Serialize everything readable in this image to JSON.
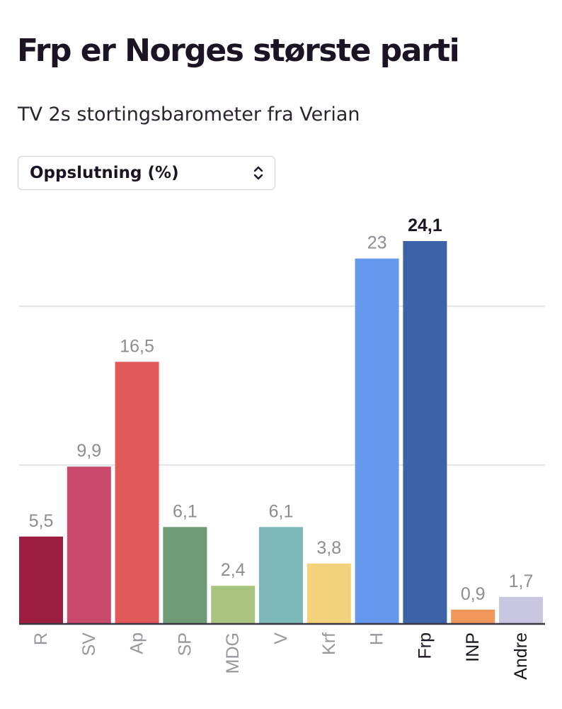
{
  "title": "Frp er Norges største parti",
  "subtitle": "TV 2s stortingsbarometer fra Verian",
  "dropdown": {
    "selected": "Oppslutning (%)",
    "icon": "chevron-up-down-icon"
  },
  "chart_data": {
    "type": "bar",
    "categories": [
      "R",
      "SV",
      "Ap",
      "SP",
      "MDG",
      "V",
      "Krf",
      "H",
      "Frp",
      "INP",
      "Andre"
    ],
    "values": [
      5.5,
      9.9,
      16.5,
      6.1,
      2.4,
      6.1,
      3.8,
      23,
      24.1,
      0.9,
      1.7
    ],
    "value_labels": [
      "5,5",
      "9,9",
      "16,5",
      "6,1",
      "2,4",
      "6,1",
      "3,8",
      "23",
      "24,1",
      "0,9",
      "1,7"
    ],
    "colors": [
      "#9b1e3f",
      "#c94a6a",
      "#e05a5a",
      "#6e9a74",
      "#a8c47e",
      "#7cb8b8",
      "#f2d27a",
      "#6699ee",
      "#3b64a8",
      "#f0965a",
      "#c8c6e0"
    ],
    "highlight": "Frp",
    "ylim": [
      0,
      24.1
    ],
    "gridlines": [
      10,
      20
    ],
    "grid": true,
    "xlabel": "",
    "ylabel": ""
  }
}
